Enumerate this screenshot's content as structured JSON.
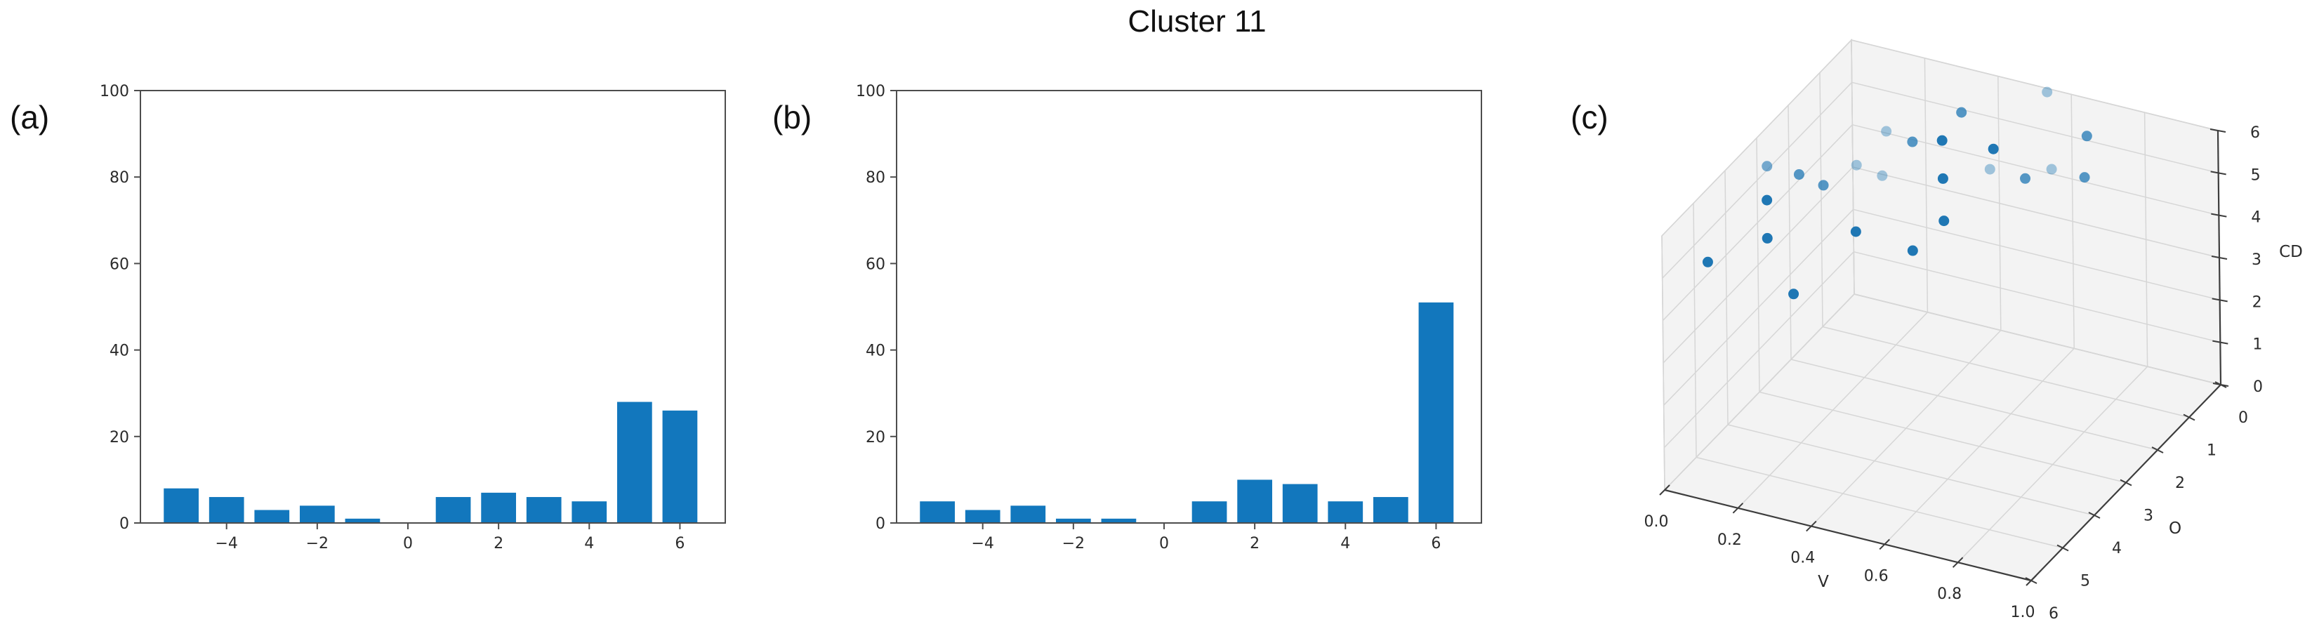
{
  "figure": {
    "panel_labels": {
      "a": "(a)",
      "b": "(b)",
      "c": "(c)"
    }
  },
  "chart_data": [
    {
      "id": "hist_a",
      "type": "bar",
      "panel": "a",
      "title": "",
      "xlabel": "",
      "ylabel": "",
      "categories": [
        -5,
        -4,
        -3,
        -2,
        -1,
        0,
        1,
        2,
        3,
        4,
        5,
        6
      ],
      "values": [
        8,
        6,
        3,
        4,
        1,
        0,
        6,
        7,
        6,
        5,
        28,
        26
      ],
      "xticks": [
        -4,
        -2,
        0,
        2,
        4,
        6
      ],
      "yticks": [
        0,
        20,
        40,
        60,
        80,
        100
      ],
      "xlim": [
        -5.9,
        7.0
      ],
      "ylim": [
        0,
        100
      ],
      "bar_width": 0.77,
      "bar_color": "#1277bd",
      "grid": false,
      "legend": "none"
    },
    {
      "id": "hist_b",
      "type": "bar",
      "panel": "b",
      "title": "Cluster 11",
      "xlabel": "",
      "ylabel": "",
      "categories": [
        -5,
        -4,
        -3,
        -2,
        -1,
        0,
        1,
        2,
        3,
        4,
        5,
        6
      ],
      "values": [
        5,
        3,
        4,
        1,
        1,
        0,
        5,
        10,
        9,
        5,
        6,
        51
      ],
      "xticks": [
        -4,
        -2,
        0,
        2,
        4,
        6
      ],
      "yticks": [
        0,
        20,
        40,
        60,
        80,
        100
      ],
      "xlim": [
        -5.9,
        7.0
      ],
      "ylim": [
        0,
        100
      ],
      "bar_width": 0.77,
      "bar_color": "#1277bd",
      "grid": false,
      "legend": "none"
    },
    {
      "id": "scatter_c",
      "type": "scatter",
      "projection": "3d",
      "panel": "c",
      "title": "",
      "xlabel": "V",
      "ylabel": "O",
      "zlabel": "CD",
      "xticks": [
        0.0,
        0.2,
        0.4,
        0.6,
        0.8,
        1.0
      ],
      "yticks": [
        0,
        1,
        2,
        3,
        4,
        5,
        6
      ],
      "zticks": [
        0,
        1,
        2,
        3,
        4,
        5,
        6
      ],
      "xlim": [
        0,
        1
      ],
      "ylim": [
        0,
        6
      ],
      "zlim": [
        0,
        6
      ],
      "grid": true,
      "point_color": "#1f77b4",
      "points": [
        {
          "v": 0.56,
          "o": 0.3,
          "cd": 6.2,
          "alpha": 0.4
        },
        {
          "v": 0.65,
          "o": 0.1,
          "cd": 5.2,
          "alpha": 0.75
        },
        {
          "v": 0.57,
          "o": 0.3,
          "cd": 4.4,
          "alpha": 0.4
        },
        {
          "v": 0.66,
          "o": 0.3,
          "cd": 4.4,
          "alpha": 0.75
        },
        {
          "v": 0.36,
          "o": 0.7,
          "cd": 5.6,
          "alpha": 0.75
        },
        {
          "v": 0.18,
          "o": 1.0,
          "cd": 5.0,
          "alpha": 0.4
        },
        {
          "v": 0.26,
          "o": 1.1,
          "cd": 5.0,
          "alpha": 0.75
        },
        {
          "v": 0.49,
          "o": 1.2,
          "cd": 5.4,
          "alpha": 1.0
        },
        {
          "v": 0.48,
          "o": 1.2,
          "cd": 4.9,
          "alpha": 0.4
        },
        {
          "v": 0.55,
          "o": 0.9,
          "cd": 4.6,
          "alpha": 0.75
        },
        {
          "v": 0.01,
          "o": 2.8,
          "cd": 5.2,
          "alpha": 0.6
        },
        {
          "v": 0.08,
          "o": 2.6,
          "cd": 5.0,
          "alpha": 0.75
        },
        {
          "v": 0.15,
          "o": 1.6,
          "cd": 4.6,
          "alpha": 0.4
        },
        {
          "v": 0.22,
          "o": 1.6,
          "cd": 4.5,
          "alpha": 0.4
        },
        {
          "v": 0.12,
          "o": 2.3,
          "cd": 4.6,
          "alpha": 0.75
        },
        {
          "v": 0.35,
          "o": 1.2,
          "cd": 5.3,
          "alpha": 1.0
        },
        {
          "v": 0.36,
          "o": 1.3,
          "cd": 4.5,
          "alpha": 1.0
        },
        {
          "v": 0.0,
          "o": 2.7,
          "cd": 4.3,
          "alpha": 1.0
        },
        {
          "v": 0.37,
          "o": 1.4,
          "cd": 3.6,
          "alpha": 1.0
        },
        {
          "v": 0.19,
          "o": 2.1,
          "cd": 3.5,
          "alpha": 1.0
        },
        {
          "v": 0.0,
          "o": 2.7,
          "cd": 3.4,
          "alpha": 1.0
        },
        {
          "v": 0.31,
          "o": 1.7,
          "cd": 3.0,
          "alpha": 1.0
        },
        {
          "v": 0.02,
          "o": 4.8,
          "cd": 4.5,
          "alpha": 1.0
        },
        {
          "v": 0.14,
          "o": 3.5,
          "cd": 3.0,
          "alpha": 1.0
        }
      ]
    }
  ]
}
